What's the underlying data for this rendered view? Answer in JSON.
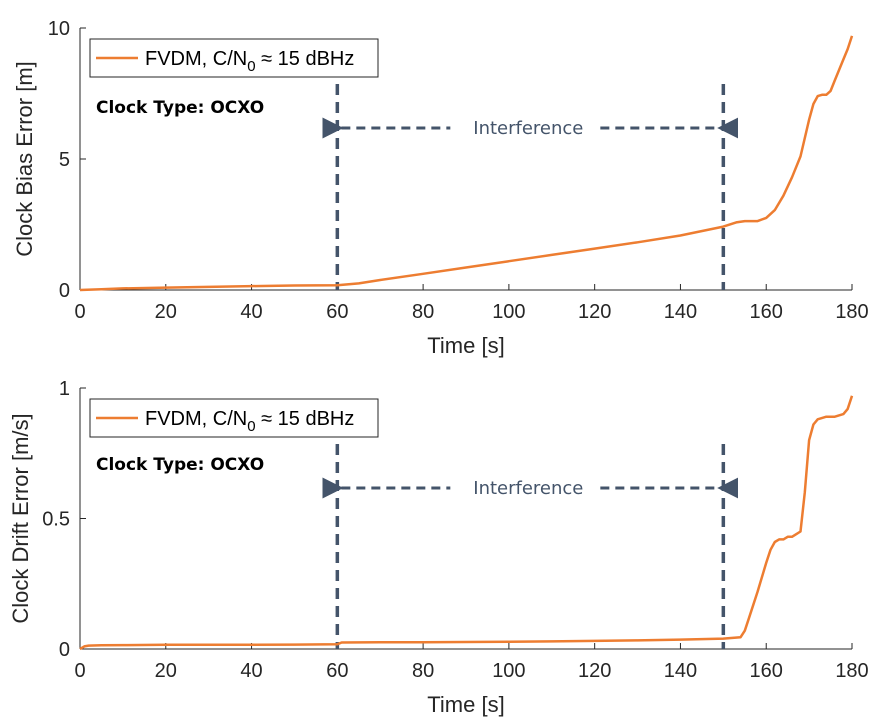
{
  "chart_data": [
    {
      "type": "line",
      "xlabel": "Time [s]",
      "ylabel": "Clock Bias Error [m]",
      "xlim": [
        0,
        180
      ],
      "ylim": [
        0,
        10
      ],
      "xticks": [
        "0",
        "20",
        "40",
        "60",
        "80",
        "100",
        "120",
        "140",
        "160",
        "180"
      ],
      "yticks": [
        "0",
        "5",
        "10"
      ],
      "grid": false,
      "legend_position": "top-left",
      "series": [
        {
          "name_prefix": "FVDM, C/N",
          "name_subscript": "0",
          "name_suffix": " ≈ 15 dBHz",
          "color": "#ED7D31",
          "x": [
            0,
            5,
            10,
            20,
            30,
            40,
            50,
            60,
            65,
            70,
            80,
            90,
            100,
            110,
            120,
            130,
            140,
            150,
            153,
            155,
            158,
            160,
            162,
            164,
            166,
            168,
            170,
            171,
            172,
            173,
            174,
            175,
            176,
            177,
            178,
            179,
            180
          ],
          "y": [
            0.0,
            0.03,
            0.06,
            0.09,
            0.12,
            0.15,
            0.17,
            0.18,
            0.25,
            0.38,
            0.62,
            0.86,
            1.1,
            1.34,
            1.58,
            1.82,
            2.08,
            2.42,
            2.58,
            2.63,
            2.63,
            2.75,
            3.05,
            3.6,
            4.3,
            5.1,
            6.5,
            7.1,
            7.4,
            7.45,
            7.45,
            7.6,
            8.0,
            8.4,
            8.8,
            9.2,
            9.7
          ]
        }
      ],
      "annotations": {
        "clock_type": "Clock Type: OCXO",
        "interference_label": "Interference",
        "interference_start": 60,
        "interference_end": 150
      }
    },
    {
      "type": "line",
      "xlabel": "Time [s]",
      "ylabel": "Clock Drift Error [m/s]",
      "xlim": [
        0,
        180
      ],
      "ylim": [
        0,
        1
      ],
      "xticks": [
        "0",
        "20",
        "40",
        "60",
        "80",
        "100",
        "120",
        "140",
        "160",
        "180"
      ],
      "yticks": [
        "0",
        "0.5",
        "1"
      ],
      "grid": false,
      "legend_position": "top-left",
      "series": [
        {
          "name_prefix": "FVDM, C/N",
          "name_subscript": "0",
          "name_suffix": " ≈ 15 dBHz",
          "color": "#ED7D31",
          "x": [
            0,
            1,
            2,
            5,
            10,
            20,
            30,
            40,
            50,
            60,
            61,
            70,
            80,
            90,
            100,
            110,
            120,
            130,
            140,
            150,
            154,
            155,
            156,
            158,
            160,
            161,
            162,
            163,
            164,
            165,
            166,
            167,
            168,
            169,
            170,
            171,
            172,
            174,
            176,
            178,
            179,
            180
          ],
          "y": [
            0.0,
            0.01,
            0.013,
            0.014,
            0.015,
            0.016,
            0.016,
            0.016,
            0.017,
            0.018,
            0.025,
            0.026,
            0.026,
            0.027,
            0.028,
            0.029,
            0.031,
            0.033,
            0.036,
            0.04,
            0.045,
            0.07,
            0.12,
            0.22,
            0.33,
            0.38,
            0.41,
            0.42,
            0.42,
            0.43,
            0.43,
            0.44,
            0.45,
            0.6,
            0.8,
            0.86,
            0.88,
            0.89,
            0.89,
            0.9,
            0.92,
            0.97
          ]
        }
      ],
      "annotations": {
        "clock_type": "Clock Type: OCXO",
        "interference_label": "Interference",
        "interference_start": 60,
        "interference_end": 150
      }
    }
  ]
}
